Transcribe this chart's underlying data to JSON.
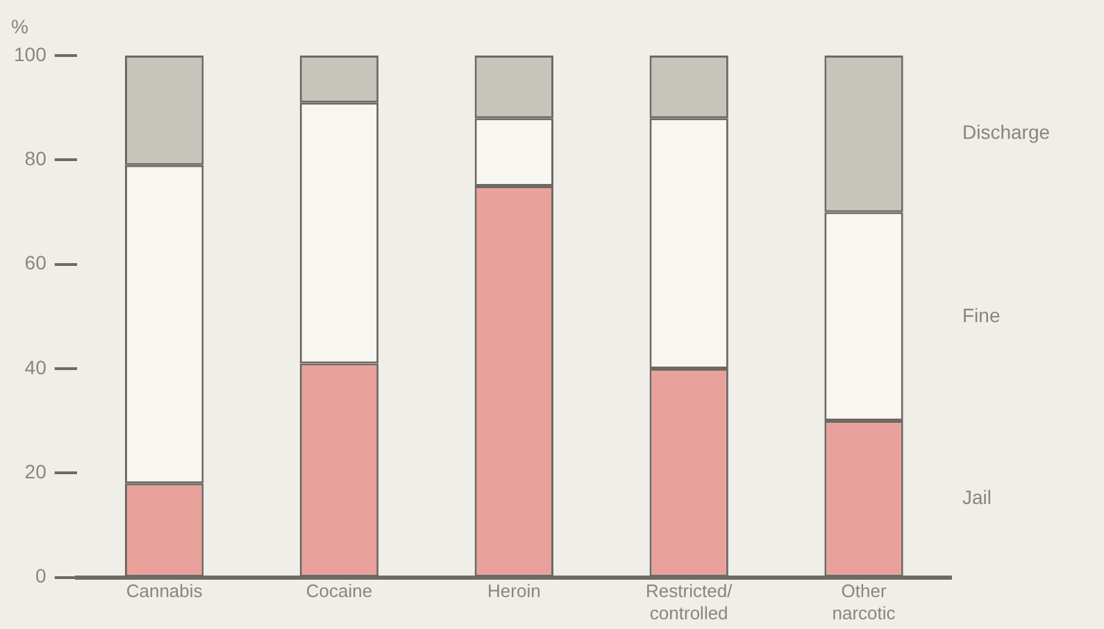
{
  "chart_data": {
    "type": "bar",
    "stacked": true,
    "ylabel": "%",
    "categories": [
      "Cannabis",
      "Cocaine",
      "Heroin",
      "Restricted/\ncontrolled",
      "Other\nnarcotic"
    ],
    "series": [
      {
        "name": "Jail",
        "color": "#e9a29b",
        "values": [
          18,
          41,
          75,
          40,
          30
        ]
      },
      {
        "name": "Fine",
        "color": "#f8f6f0",
        "values": [
          61,
          50,
          13,
          48,
          40
        ]
      },
      {
        "name": "Discharge",
        "color": "#c5c5bc",
        "values": [
          21,
          9,
          12,
          12,
          30
        ]
      }
    ],
    "ylim": [
      0,
      100
    ],
    "yticks": [
      0,
      20,
      40,
      60,
      80,
      100
    ],
    "grid": false,
    "legend": false
  }
}
